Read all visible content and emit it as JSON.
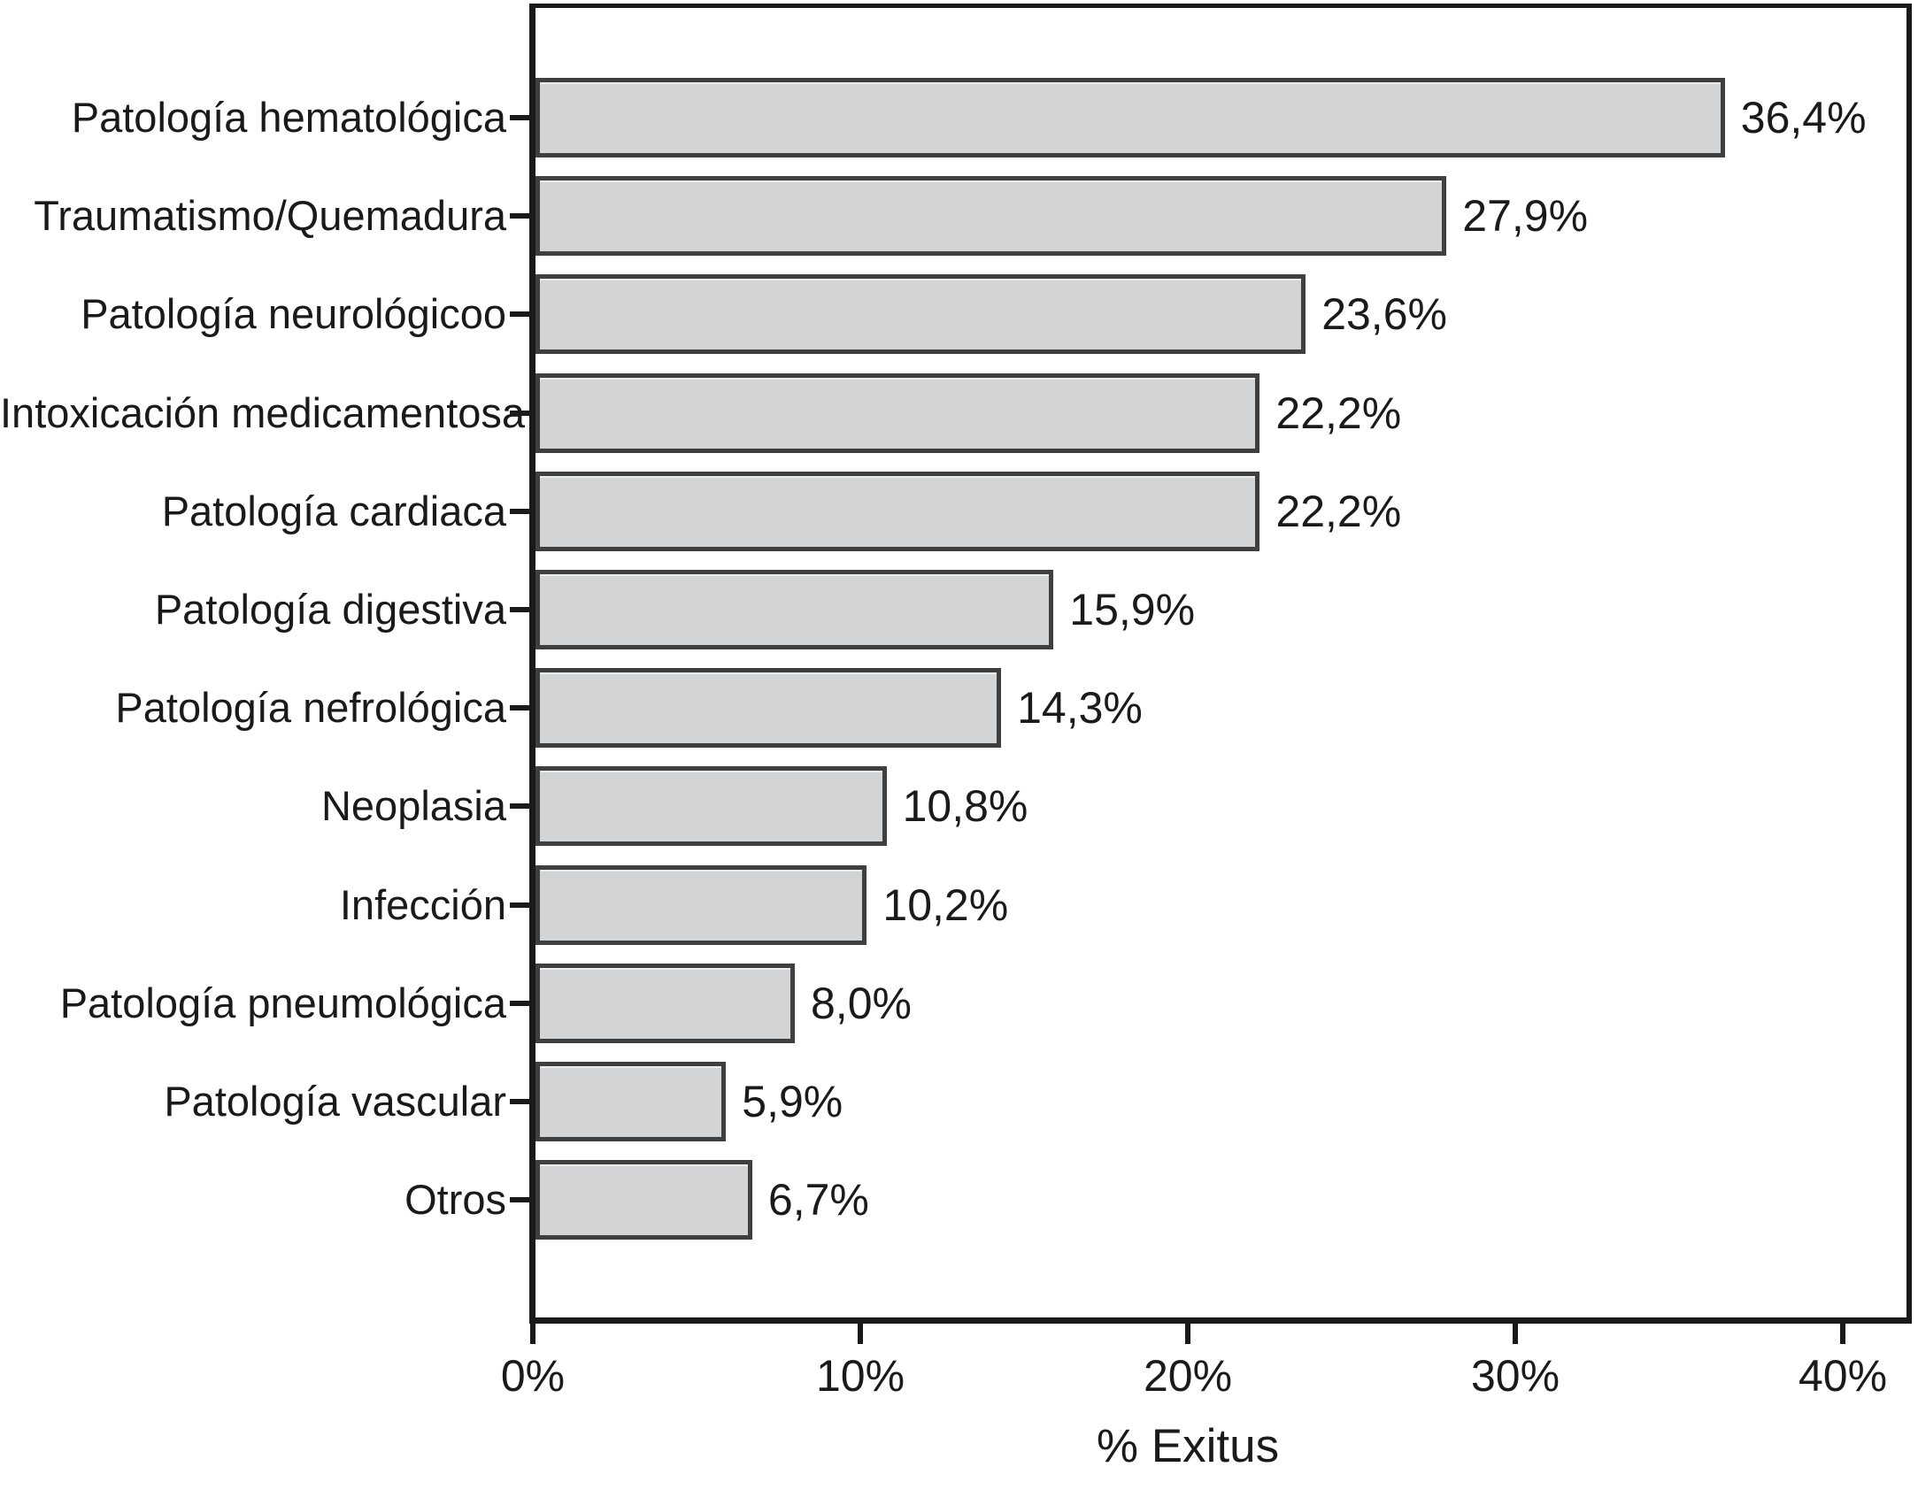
{
  "chart_data": {
    "type": "bar",
    "orientation": "horizontal",
    "title": "",
    "xlabel": "% Exitus",
    "ylabel": "",
    "categories": [
      "Patología hematológica",
      "Traumatismo/Quemadura",
      "Patología neurológicoo",
      "Intoxicación medicamentosa",
      "Patología cardiaca",
      "Patología digestiva",
      "Patología nefrológica",
      "Neoplasia",
      "Infección",
      "Patología pneumológica",
      "Patología vascular",
      "Otros"
    ],
    "values": [
      36.4,
      27.9,
      23.6,
      22.2,
      22.2,
      15.9,
      14.3,
      10.8,
      10.2,
      8.0,
      5.9,
      6.7
    ],
    "value_labels": [
      "36,4%",
      "27,9%",
      "23,6%",
      "22,2%",
      "22,2%",
      "15,9%",
      "14,3%",
      "10,8%",
      "10,2%",
      "8,0%",
      "5,9%",
      "6,7%"
    ],
    "xticks": [
      0,
      10,
      20,
      30,
      40
    ],
    "xtick_labels": [
      "0%",
      "10%",
      "20%",
      "30%",
      "40%"
    ],
    "xlim": [
      0,
      42
    ],
    "grid": false,
    "legend_position": "none",
    "colors": {
      "background": "#ffffff",
      "bar_fill": "#d2d4d5",
      "bar_border": "#3f3f3f",
      "axis": "#1a1a1a",
      "text": "#1a1a1a"
    }
  }
}
